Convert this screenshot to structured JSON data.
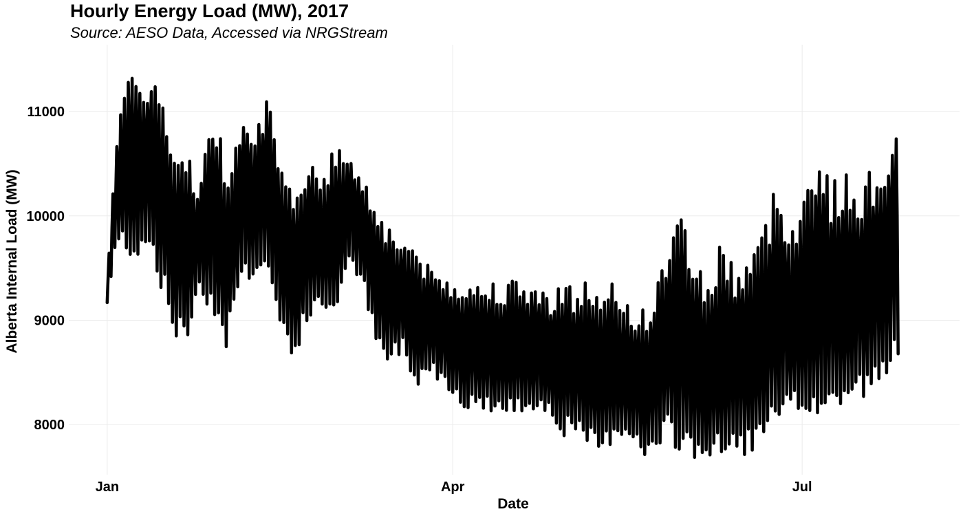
{
  "chart_data": {
    "type": "line",
    "title": "Hourly Energy Load (MW), 2017",
    "subtitle": "Source: AESO Data, Accessed via NRGStream",
    "xlabel": "Date",
    "ylabel": "Alberta Internal Load (MW)",
    "x_tick_labels": [
      "Jan",
      "Apr",
      "Jul"
    ],
    "x_tick_dates": [
      "2017-01-01",
      "2017-04-01",
      "2017-07-01"
    ],
    "y_ticks": [
      8000,
      9000,
      10000,
      11000
    ],
    "y_tick_labels": [
      "8000",
      "9000",
      "10000",
      "11000"
    ],
    "xlim": [
      "2016-12-22",
      "2017-08-11"
    ],
    "ylim": [
      7520,
      11640
    ],
    "grid": true,
    "legend": "none",
    "line_color": "#000000",
    "grid_color": "#ebebeb",
    "series": [
      {
        "x": [
          "2017-01-01",
          "2017-01-03",
          "2017-01-05",
          "2017-01-08",
          "2017-01-12",
          "2017-01-15",
          "2017-01-19",
          "2017-01-22",
          "2017-01-25",
          "2017-01-29",
          "2017-02-01",
          "2017-02-05",
          "2017-02-08",
          "2017-02-12",
          "2017-02-15",
          "2017-02-19",
          "2017-02-22",
          "2017-02-26",
          "2017-03-01",
          "2017-03-05",
          "2017-03-08",
          "2017-03-12",
          "2017-03-15",
          "2017-03-19",
          "2017-03-22",
          "2017-03-26",
          "2017-03-29",
          "2017-04-01",
          "2017-04-05",
          "2017-04-08",
          "2017-04-12",
          "2017-04-15",
          "2017-04-19",
          "2017-04-22",
          "2017-04-26",
          "2017-04-29",
          "2017-05-03",
          "2017-05-06",
          "2017-05-10",
          "2017-05-13",
          "2017-05-17",
          "2017-05-20",
          "2017-05-24",
          "2017-05-27",
          "2017-05-31",
          "2017-06-03",
          "2017-06-07",
          "2017-06-10",
          "2017-06-14",
          "2017-06-17",
          "2017-06-21",
          "2017-06-24",
          "2017-06-28",
          "2017-07-01",
          "2017-07-05",
          "2017-07-08",
          "2017-07-12",
          "2017-07-15",
          "2017-07-19",
          "2017-07-22",
          "2017-07-26"
        ],
        "low": [
          9150,
          9600,
          9700,
          9550,
          9700,
          9300,
          8780,
          8800,
          9300,
          9000,
          8730,
          9350,
          9400,
          9400,
          8900,
          8600,
          8950,
          9050,
          9050,
          9450,
          9400,
          8700,
          8550,
          8700,
          8350,
          8500,
          8400,
          8300,
          8100,
          8150,
          8100,
          8050,
          8100,
          8150,
          8100,
          7900,
          7850,
          7750,
          7700,
          7850,
          7900,
          7650,
          7680,
          7800,
          7700,
          7650,
          7650,
          7600,
          7720,
          7700,
          7750,
          7900,
          8000,
          8100,
          8000,
          8050,
          8150,
          8200,
          8250,
          8300,
          8600
        ],
        "high": [
          9400,
          10700,
          11250,
          11350,
          11400,
          11250,
          10500,
          10700,
          10300,
          11150,
          10450,
          11100,
          10950,
          11150,
          10450,
          10200,
          10650,
          10500,
          10650,
          10700,
          10400,
          10200,
          9950,
          9800,
          9780,
          9500,
          9450,
          9400,
          9450,
          9350,
          9420,
          9400,
          9380,
          9380,
          9250,
          9450,
          9300,
          9450,
          9200,
          9380,
          9200,
          9100,
          9300,
          9850,
          10080,
          9650,
          9400,
          9850,
          9500,
          9700,
          9900,
          10370,
          10050,
          10150,
          10800,
          10350,
          10420,
          10350,
          10450,
          10650,
          10850
        ]
      }
    ]
  }
}
